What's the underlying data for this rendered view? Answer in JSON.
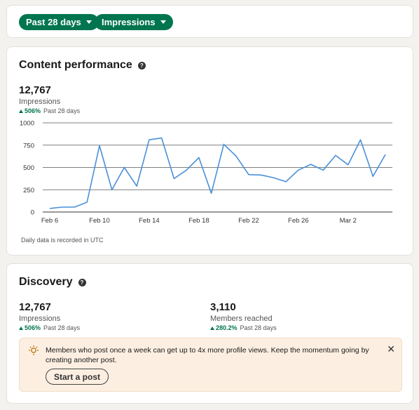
{
  "filters": [
    {
      "label": "Past 28 days"
    },
    {
      "label": "Impressions"
    }
  ],
  "content_performance": {
    "title": "Content performance",
    "metric_value": "12,767",
    "metric_label": "Impressions",
    "delta_pct": "506%",
    "delta_period": "Past 28 days",
    "footnote": "Daily data is recorded in UTC"
  },
  "chart_data": {
    "type": "line",
    "x": [
      "Feb 6",
      "Feb 7",
      "Feb 8",
      "Feb 9",
      "Feb 10",
      "Feb 11",
      "Feb 12",
      "Feb 13",
      "Feb 14",
      "Feb 15",
      "Feb 16",
      "Feb 17",
      "Feb 18",
      "Feb 19",
      "Feb 20",
      "Feb 21",
      "Feb 22",
      "Feb 23",
      "Feb 24",
      "Feb 25",
      "Feb 26",
      "Feb 27",
      "Feb 28",
      "Mar 1",
      "Mar 2",
      "Mar 3",
      "Mar 4",
      "Mar 5"
    ],
    "series": [
      {
        "values": [
          40,
          55,
          55,
          110,
          745,
          250,
          500,
          290,
          810,
          830,
          375,
          470,
          610,
          210,
          760,
          625,
          420,
          415,
          385,
          340,
          470,
          535,
          470,
          635,
          530,
          810,
          400,
          645
        ]
      }
    ],
    "x_tick_labels": [
      "Feb 6",
      "Feb 10",
      "Feb 14",
      "Feb 18",
      "Feb 22",
      "Feb 26",
      "Mar 2"
    ],
    "y_ticks": [
      0,
      250,
      500,
      750,
      1000
    ],
    "ylim": [
      0,
      1000
    ],
    "grid": true,
    "line_color": "#4a90d9"
  },
  "discovery": {
    "title": "Discovery",
    "impressions": {
      "value": "12,767",
      "label": "Impressions",
      "delta_pct": "506%",
      "delta_period": "Past 28 days"
    },
    "members": {
      "value": "3,110",
      "label": "Members reached",
      "delta_pct": "280.2%",
      "delta_period": "Past 28 days"
    },
    "tip_text": "Members who post once a week can get up to 4x more profile views. Keep the momentum going by creating another post.",
    "cta_label": "Start a post",
    "close_symbol": "✕"
  },
  "colors": {
    "accent": "#01754f",
    "tip_bg": "#fcefe2"
  }
}
